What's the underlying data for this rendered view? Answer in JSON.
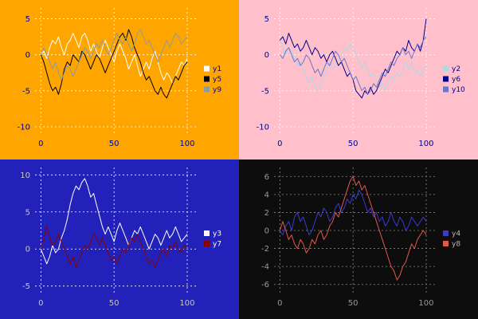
{
  "chart_data": [
    {
      "type": "line",
      "id": "top-left",
      "title": "",
      "xlabel": "",
      "ylabel": "",
      "bg": "#FFA500",
      "grid_color": "#FFFFFF",
      "tick_color": "#00008B",
      "legend_text_color": "#00008B",
      "legend_position": "right-center",
      "grid": true,
      "xlim": [
        -4,
        106
      ],
      "ylim": [
        -11,
        6.5
      ],
      "xticks": [
        0,
        50,
        100
      ],
      "yticks": [
        5,
        0,
        -5,
        -10
      ],
      "x_range": [
        0,
        100
      ],
      "series": [
        {
          "name": "y1",
          "color": "#FFFFFF",
          "values": [
            0,
            0.5,
            -0.5,
            1,
            2,
            1.5,
            2.5,
            1,
            0,
            1.5,
            2,
            3,
            2,
            1,
            2.5,
            3,
            2,
            0.5,
            1.5,
            0.5,
            -0.5,
            1,
            2,
            1,
            0,
            -1,
            0.5,
            1.5,
            0.5,
            -0.5,
            -2,
            -1,
            0,
            -1.5,
            -3,
            -2,
            -1,
            -2,
            -0.5,
            0.5,
            -1,
            -2.5,
            -3.5,
            -2.5,
            -3,
            -4,
            -3,
            -2,
            -1,
            -1.5,
            -0.5
          ]
        },
        {
          "name": "y5",
          "color": "#000000",
          "values": [
            0,
            -1,
            -2.5,
            -4,
            -5,
            -4.5,
            -5.5,
            -4,
            -2,
            -1,
            -1.5,
            0,
            -0.5,
            -1,
            0.5,
            0,
            -1,
            -2,
            -1,
            0,
            -0.5,
            -1.5,
            -2.5,
            -1.5,
            -0.5,
            0.5,
            1.5,
            2.5,
            3,
            2,
            3.5,
            2.5,
            1,
            0,
            -1,
            -2.5,
            -3.5,
            -3,
            -4,
            -5,
            -5.5,
            -4.5,
            -5.5,
            -6,
            -5,
            -4,
            -3,
            -3.5,
            -2.5,
            -1.5,
            -1
          ]
        },
        {
          "name": "y9",
          "color": "#8C9C9C",
          "values": [
            0,
            1,
            0,
            -1,
            -2,
            -1,
            -2.5,
            -3.5,
            -2.5,
            -1.5,
            -2,
            -3,
            -2,
            -1,
            0,
            1,
            0.5,
            -0.5,
            0.5,
            1.5,
            1,
            2,
            1,
            0,
            1,
            2,
            3,
            2,
            1.5,
            2.5,
            1.5,
            0.5,
            1.5,
            3,
            3.5,
            2.5,
            1.5,
            2,
            1,
            0,
            -1,
            0,
            1,
            2,
            1,
            2,
            3,
            2.5,
            1.5,
            2,
            2.5
          ]
        }
      ]
    },
    {
      "type": "line",
      "id": "top-right",
      "title": "",
      "xlabel": "",
      "ylabel": "",
      "bg": "#FFC0CB",
      "grid_color": "#FFFFFF",
      "tick_color": "#00008B",
      "legend_text_color": "#00008B",
      "legend_position": "right-center",
      "grid": true,
      "xlim": [
        -4,
        106
      ],
      "ylim": [
        -11,
        6.5
      ],
      "xticks": [
        0,
        50,
        100
      ],
      "yticks": [
        5,
        0,
        -5,
        -10
      ],
      "x_range": [
        0,
        100
      ],
      "series": [
        {
          "name": "y2",
          "color": "#ADD8E6",
          "values": [
            2,
            1,
            0,
            1,
            0.5,
            -0.5,
            -1.5,
            -1,
            -2,
            -3,
            -4,
            -3,
            -4.5,
            -5,
            -4,
            -3,
            -2,
            -1,
            -2,
            -1.5,
            -0.5,
            0,
            1,
            0.5,
            1.5,
            1,
            0,
            -1,
            -2,
            -1,
            -2,
            -3,
            -2.5,
            -3.5,
            -4.5,
            -4,
            -5,
            -4,
            -3,
            -3.5,
            -2.5,
            -3,
            -2,
            -1,
            -2,
            -1,
            -2.5,
            -2,
            -3,
            -2,
            -1.5
          ]
        },
        {
          "name": "y6",
          "color": "#00008B",
          "values": [
            2,
            2.5,
            1.5,
            3,
            2,
            1,
            1.5,
            0.5,
            1,
            2,
            1,
            0,
            1,
            0.5,
            -0.5,
            0,
            -1,
            0,
            0.5,
            -0.5,
            -1.5,
            -1,
            -2,
            -3,
            -2.5,
            -3.5,
            -5,
            -5.5,
            -6,
            -5,
            -5.5,
            -4.5,
            -5.5,
            -5,
            -4,
            -3,
            -2,
            -2.5,
            -1.5,
            -0.5,
            0.5,
            0,
            1,
            0.5,
            2,
            1,
            0.5,
            1.5,
            0.5,
            2,
            5
          ]
        },
        {
          "name": "y10",
          "color": "#6677CC",
          "values": [
            0,
            -0.5,
            0.5,
            1,
            0,
            -1,
            -0.5,
            -1.5,
            -1,
            0,
            -0.5,
            -1.5,
            -2.5,
            -2,
            -3,
            -2,
            -1,
            -1.5,
            -0.5,
            0.5,
            0,
            -1,
            -0.5,
            -1.5,
            -2.5,
            -3.5,
            -3,
            -4,
            -5,
            -4.5,
            -5.5,
            -5,
            -4,
            -4.5,
            -3.5,
            -2.5,
            -3,
            -2,
            -1,
            -1.5,
            -0.5,
            0,
            1,
            0,
            0.5,
            -0.5,
            0.5,
            1.5,
            1,
            2,
            2.5
          ]
        }
      ]
    },
    {
      "type": "line",
      "id": "bottom-left",
      "title": "",
      "xlabel": "",
      "ylabel": "",
      "bg": "#2222BB",
      "grid_color": "#FFFFFF",
      "tick_color": "#C8C8C8",
      "legend_text_color": "#FFFFFF",
      "legend_position": "right-center",
      "grid": true,
      "xlim": [
        -4,
        106
      ],
      "ylim": [
        -6,
        11
      ],
      "xticks": [
        0,
        50,
        100
      ],
      "yticks": [
        10,
        5,
        0,
        -5
      ],
      "x_range": [
        0,
        100
      ],
      "series": [
        {
          "name": "y3",
          "color": "#FFFFFF",
          "values": [
            0,
            -1,
            -2,
            -1,
            0.5,
            -0.5,
            0,
            1.5,
            2.5,
            4,
            6,
            7.5,
            8.5,
            8,
            9,
            9.5,
            8.5,
            7,
            7.5,
            6,
            4.5,
            3,
            2,
            3,
            2,
            1,
            2.5,
            3.5,
            2.5,
            1.5,
            0.5,
            1.5,
            2.5,
            2,
            3,
            2,
            1,
            0,
            1,
            2,
            1.5,
            0.5,
            1.5,
            2.5,
            1.5,
            2,
            3,
            2,
            1,
            1.5,
            2
          ]
        },
        {
          "name": "y7",
          "color": "#8B0000",
          "values": [
            0,
            1.5,
            3,
            1.5,
            0.5,
            1,
            2,
            1,
            0,
            -1,
            -2,
            -1,
            -2.5,
            -1.5,
            -0.5,
            0.5,
            0,
            1,
            2,
            1.5,
            0.5,
            1.5,
            0.5,
            -0.5,
            -1.5,
            -1,
            -2,
            -1,
            0,
            -0.5,
            0.5,
            1.5,
            1,
            2,
            1,
            0,
            -1,
            -2,
            -1.5,
            -2.5,
            -1.5,
            -0.5,
            0,
            -1,
            0.5,
            0,
            1,
            0,
            -0.5,
            0.5,
            0
          ]
        }
      ]
    },
    {
      "type": "line",
      "id": "bottom-right",
      "title": "",
      "xlabel": "",
      "ylabel": "",
      "bg": "#0D0D0D",
      "grid_color": "#888888",
      "tick_color": "#999999",
      "legend_text_color": "#BBBBBB",
      "legend_position": "right-center",
      "grid": true,
      "xlim": [
        -4,
        106
      ],
      "ylim": [
        -7,
        7
      ],
      "xticks": [
        0,
        50,
        100
      ],
      "yticks": [
        6,
        4,
        2,
        0,
        -2,
        -4,
        -6
      ],
      "x_range": [
        0,
        100
      ],
      "series": [
        {
          "name": "y4",
          "color": "#3A3AD1",
          "values": [
            0,
            -0.5,
            0.5,
            1,
            0,
            1.5,
            2,
            1,
            1.5,
            0.5,
            -0.5,
            0,
            1,
            2,
            1.5,
            2.5,
            2,
            1,
            1.5,
            2.5,
            3,
            2,
            2.5,
            3.5,
            3,
            4,
            3.5,
            4.5,
            4,
            3,
            2,
            2.5,
            1.5,
            2,
            1,
            1.5,
            0.5,
            1,
            2,
            1,
            0.5,
            1.5,
            1,
            0,
            0.5,
            1.5,
            1,
            0.5,
            1,
            1.5,
            1
          ]
        },
        {
          "name": "y8",
          "color": "#E2584A",
          "values": [
            0,
            1,
            0,
            -1,
            -0.5,
            -1.5,
            -2,
            -1,
            -1.5,
            -2.5,
            -2,
            -1,
            -1.5,
            -0.5,
            0,
            -1,
            -0.5,
            0.5,
            1,
            2,
            1.5,
            2.5,
            3.5,
            4.5,
            5.5,
            6,
            5,
            5.5,
            4.5,
            5,
            4,
            3,
            2,
            1,
            0,
            -1,
            -2,
            -3,
            -4,
            -4.5,
            -5.5,
            -5,
            -4,
            -3.5,
            -2.5,
            -1.5,
            -2,
            -1,
            -0.5,
            0,
            -0.5
          ]
        }
      ]
    }
  ]
}
